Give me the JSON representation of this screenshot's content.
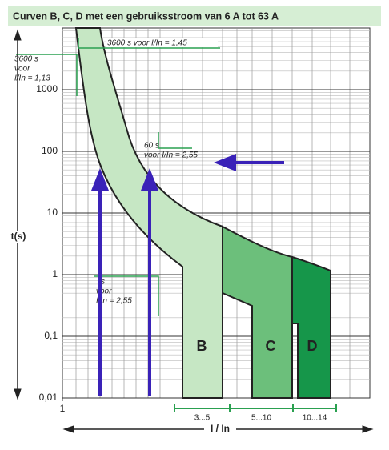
{
  "chart_data": {
    "type": "tripping-curves",
    "title": "Curven B, C, D met een gebruiksstroom van 6 A tot 63 A",
    "ylabel": "t(s)",
    "xlabel": "I / In",
    "ylog": true,
    "xlog": true,
    "ylim": [
      0.01,
      10000
    ],
    "yticks": [
      {
        "value": 0.01,
        "label": "0,01"
      },
      {
        "value": 0.1,
        "label": "0,1"
      },
      1,
      10,
      100,
      1000
    ],
    "xlim": [
      1,
      20
    ],
    "xticks": [
      1
    ],
    "bands": [
      {
        "name": "B",
        "range": "3...5",
        "color": "#c6e7c4"
      },
      {
        "name": "C",
        "range": "5...10",
        "color": "#6cbf7b"
      },
      {
        "name": "D",
        "range": "10...14",
        "color": "#16964a"
      }
    ],
    "annotations": [
      {
        "lines": [
          "3600 s",
          "voor",
          "I/In = 1,13"
        ]
      },
      {
        "lines": [
          "3600 s voor I/In = 1,45"
        ]
      },
      {
        "lines": [
          "60 s",
          "voor I/In = 2,55"
        ]
      },
      {
        "lines": [
          "s",
          "voor",
          "I/In = 2,55"
        ]
      }
    ]
  }
}
